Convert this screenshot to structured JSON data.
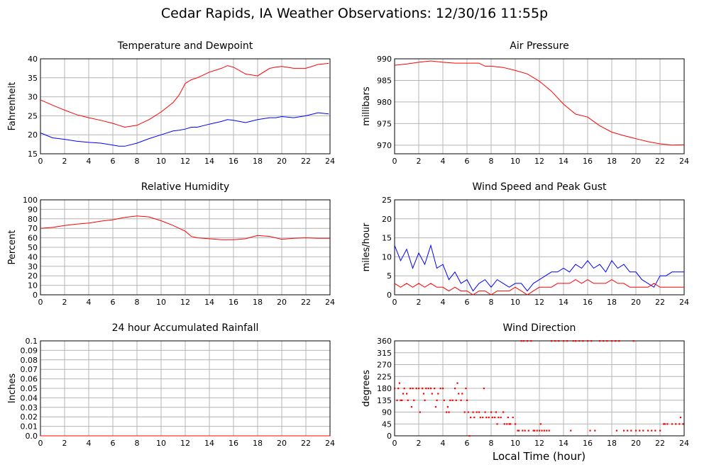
{
  "page": {
    "title": "Cedar Rapids, IA Weather Observations: 12/30/16 11:55p",
    "xlabel": "Local Time (hour)"
  },
  "chart_data": [
    {
      "type": "line",
      "title": "Temperature and Dewpoint",
      "xlabel": "",
      "ylabel": "Fahrenheit",
      "xlim": [
        0,
        24
      ],
      "ylim": [
        15,
        40
      ],
      "xticks": [
        0,
        2,
        4,
        6,
        8,
        10,
        12,
        14,
        16,
        18,
        20,
        22,
        24
      ],
      "yticks": [
        15,
        20,
        25,
        30,
        35,
        40
      ],
      "grid": true,
      "x": [
        0,
        1,
        2,
        3,
        4,
        5,
        6,
        6.5,
        7,
        8,
        9,
        10,
        11,
        11.5,
        12,
        12.5,
        13,
        14,
        15,
        15.5,
        16,
        17,
        18,
        19,
        19.5,
        20,
        21,
        22,
        23,
        23.9
      ],
      "series": [
        {
          "color": "#ff0000",
          "values": [
            29.2,
            27.8,
            26.5,
            25.3,
            24.5,
            23.8,
            23.0,
            22.5,
            22.0,
            22.5,
            24.0,
            26.0,
            28.5,
            30.5,
            33.5,
            34.5,
            35.0,
            36.5,
            37.5,
            38.2,
            37.8,
            36.0,
            35.5,
            37.5,
            37.8,
            38.0,
            37.5,
            37.5,
            38.5,
            38.8
          ]
        },
        {
          "color": "#0000ff",
          "values": [
            20.5,
            19.2,
            18.8,
            18.3,
            18.0,
            17.8,
            17.3,
            17.0,
            17.0,
            17.8,
            19.0,
            20.0,
            21.0,
            21.2,
            21.5,
            22.0,
            22.0,
            22.8,
            23.5,
            24.0,
            23.8,
            23.2,
            24.0,
            24.5,
            24.5,
            24.8,
            24.5,
            25.0,
            25.8,
            25.5
          ]
        }
      ]
    },
    {
      "type": "line",
      "title": "Air Pressure",
      "xlabel": "",
      "ylabel": "millibars",
      "xlim": [
        0,
        24
      ],
      "ylim": [
        968,
        990
      ],
      "xticks": [
        0,
        2,
        4,
        6,
        8,
        10,
        12,
        14,
        16,
        18,
        20,
        22,
        24
      ],
      "yticks": [
        970,
        975,
        980,
        985,
        990
      ],
      "grid": true,
      "x": [
        0,
        1,
        2,
        3,
        4,
        5,
        6,
        7,
        7.5,
        8,
        9,
        10,
        11,
        12,
        13,
        14,
        15,
        16,
        17,
        18,
        19,
        20,
        21,
        22,
        23,
        24
      ],
      "series": [
        {
          "color": "#ff0000",
          "values": [
            988.5,
            988.8,
            989.2,
            989.5,
            989.2,
            989.0,
            989.0,
            989.0,
            988.3,
            988.3,
            988.0,
            987.3,
            986.5,
            984.8,
            982.5,
            979.5,
            977.2,
            976.5,
            974.5,
            973.0,
            972.2,
            971.5,
            970.8,
            970.3,
            970.0,
            970.1
          ]
        }
      ]
    },
    {
      "type": "line",
      "title": "Relative Humidity",
      "xlabel": "",
      "ylabel": "Percent",
      "xlim": [
        0,
        24
      ],
      "ylim": [
        0,
        100
      ],
      "xticks": [
        0,
        2,
        4,
        6,
        8,
        10,
        12,
        14,
        16,
        18,
        20,
        22,
        24
      ],
      "yticks": [
        0,
        10,
        20,
        30,
        40,
        50,
        60,
        70,
        80,
        90,
        100
      ],
      "grid": true,
      "x": [
        0,
        1,
        2,
        3,
        4,
        5,
        6,
        7,
        8,
        9,
        10,
        11,
        12,
        12.5,
        13,
        14,
        15,
        16,
        17,
        18,
        19,
        20,
        21,
        22,
        23,
        24
      ],
      "series": [
        {
          "color": "#ff0000",
          "values": [
            70,
            71,
            73,
            74.5,
            75.5,
            77.5,
            79,
            81.5,
            83,
            82,
            78,
            73,
            67,
            61.5,
            60,
            59,
            58,
            58,
            59,
            62.5,
            61.5,
            58.5,
            59.5,
            60,
            59.5,
            59.5
          ]
        }
      ]
    },
    {
      "type": "line",
      "title": "Wind Speed and Peak Gust",
      "xlabel": "",
      "ylabel": "miles/hour",
      "xlim": [
        0,
        24
      ],
      "ylim": [
        0,
        25
      ],
      "xticks": [
        0,
        2,
        4,
        6,
        8,
        10,
        12,
        14,
        16,
        18,
        20,
        22,
        24
      ],
      "yticks": [
        0,
        5,
        10,
        15,
        20,
        25
      ],
      "grid": true,
      "x": [
        0,
        0.5,
        1,
        1.5,
        2,
        2.5,
        3,
        3.5,
        4,
        4.5,
        5,
        5.5,
        6,
        6.5,
        7,
        7.5,
        8,
        8.5,
        9,
        9.5,
        10,
        10.5,
        11,
        11.5,
        12,
        12.5,
        13,
        13.5,
        14,
        14.5,
        15,
        15.5,
        16,
        16.5,
        17,
        17.5,
        18,
        18.5,
        19,
        19.5,
        20,
        20.5,
        21,
        21.5,
        22,
        22.5,
        23,
        23.5,
        24
      ],
      "series": [
        {
          "color": "#0000ff",
          "values": [
            13,
            9,
            12,
            7,
            11,
            8,
            13,
            7,
            8,
            4,
            6,
            3,
            4,
            1,
            3,
            4,
            2,
            4,
            3,
            2,
            3,
            3,
            1,
            3,
            4,
            5,
            6,
            6,
            7,
            6,
            8,
            7,
            9,
            7,
            8,
            6,
            9,
            7,
            8,
            6,
            6,
            4,
            3,
            2,
            5,
            5,
            6,
            6,
            6
          ]
        },
        {
          "color": "#ff0000",
          "values": [
            3,
            2,
            3,
            2,
            3,
            2,
            3,
            2,
            2,
            1,
            2,
            1,
            1,
            0,
            1,
            1,
            0,
            1,
            1,
            1,
            2,
            1,
            0,
            1,
            2,
            2,
            2,
            3,
            3,
            3,
            4,
            3,
            4,
            3,
            3,
            3,
            4,
            3,
            3,
            2,
            2,
            2,
            2,
            3,
            2,
            2,
            2,
            2,
            2
          ]
        }
      ]
    },
    {
      "type": "line",
      "title": "24 hour Accumulated Rainfall",
      "xlabel": "",
      "ylabel": "Inches",
      "xlim": [
        0,
        24
      ],
      "ylim": [
        0,
        0.1
      ],
      "xticks": [
        0,
        2,
        4,
        6,
        8,
        10,
        12,
        14,
        16,
        18,
        20,
        22,
        24
      ],
      "yticks": [
        "0.0",
        "0.01",
        "0.02",
        "0.03",
        "0.04",
        "0.05",
        "0.06",
        "0.07",
        "0.08",
        "0.09",
        "0.1"
      ],
      "grid": true,
      "x": [
        0,
        24
      ],
      "series": [
        {
          "color": "#ff0000",
          "values": [
            0,
            0
          ]
        }
      ]
    },
    {
      "type": "scatter",
      "title": "Wind Direction",
      "xlabel": "Local Time (hour)",
      "ylabel": "degrees",
      "xlim": [
        0,
        24
      ],
      "ylim": [
        0,
        360
      ],
      "xticks": [
        0,
        2,
        4,
        6,
        8,
        10,
        12,
        14,
        16,
        18,
        20,
        22,
        24
      ],
      "yticks": [
        0,
        45,
        90,
        135,
        180,
        225,
        270,
        315,
        360
      ],
      "grid": true,
      "series": [
        {
          "color": "#ff0000",
          "x": [
            0.0,
            0.2,
            0.3,
            0.5,
            0.6,
            0.8,
            1.0,
            1.1,
            1.3,
            1.5,
            1.6,
            1.8,
            2.0,
            2.1,
            2.3,
            2.5,
            2.6,
            2.8,
            3.0,
            3.1,
            3.3,
            3.5,
            3.6,
            3.8,
            4.0,
            4.1,
            4.3,
            4.5,
            4.6,
            4.8,
            5.0,
            5.1,
            5.3,
            5.5,
            5.6,
            5.8,
            6.0,
            6.1,
            6.3,
            6.5,
            6.6,
            6.8,
            7.0,
            7.1,
            7.3,
            7.5,
            7.6,
            7.8,
            8.0,
            8.1,
            8.3,
            8.5,
            8.6,
            8.8,
            9.0,
            9.1,
            9.3,
            9.5,
            9.6,
            9.8,
            10.0,
            10.2,
            10.3,
            10.5,
            10.6,
            10.8,
            11.0,
            11.1,
            11.3,
            11.5,
            11.6,
            11.8,
            12.0,
            12.2,
            12.4,
            12.6,
            12.8,
            13.0,
            13.3,
            13.6,
            14.0,
            14.3,
            14.6,
            15.0,
            15.3,
            15.6,
            16.0,
            16.3,
            16.6,
            17.0,
            17.3,
            17.6,
            18.0,
            18.3,
            18.6,
            19.0,
            19.3,
            19.6,
            20.0,
            20.3,
            20.6,
            21.0,
            21.3,
            21.6,
            22.0,
            22.3,
            22.6,
            23.0,
            23.3,
            23.6,
            23.9,
            0.4,
            0.7,
            1.4,
            2.4,
            3.4,
            4.4,
            5.2,
            5.9,
            6.2,
            7.4,
            8.4,
            9.4,
            10.7,
            12.1,
            14.8,
            16.2,
            18.4,
            19.8,
            22.4,
            23.7
          ],
          "values": [
            180,
            135,
            180,
            135,
            135,
            180,
            160,
            135,
            180,
            180,
            135,
            180,
            180,
            90,
            180,
            135,
            180,
            180,
            180,
            160,
            180,
            135,
            160,
            180,
            180,
            135,
            90,
            90,
            135,
            135,
            180,
            135,
            160,
            135,
            160,
            90,
            135,
            90,
            70,
            90,
            70,
            90,
            90,
            70,
            70,
            90,
            70,
            70,
            90,
            70,
            70,
            45,
            70,
            70,
            90,
            45,
            45,
            45,
            45,
            70,
            45,
            20,
            20,
            360,
            20,
            20,
            360,
            20,
            360,
            20,
            20,
            20,
            20,
            20,
            20,
            20,
            20,
            360,
            360,
            360,
            360,
            360,
            20,
            360,
            360,
            360,
            360,
            360,
            20,
            360,
            360,
            360,
            360,
            360,
            360,
            20,
            20,
            20,
            20,
            20,
            20,
            20,
            20,
            20,
            20,
            45,
            45,
            45,
            45,
            45,
            45,
            200,
            160,
            110,
            160,
            110,
            110,
            200,
            180,
            0,
            180,
            90,
            70,
            360,
            45,
            360,
            20,
            20,
            360,
            45,
            70
          ]
        }
      ]
    }
  ]
}
